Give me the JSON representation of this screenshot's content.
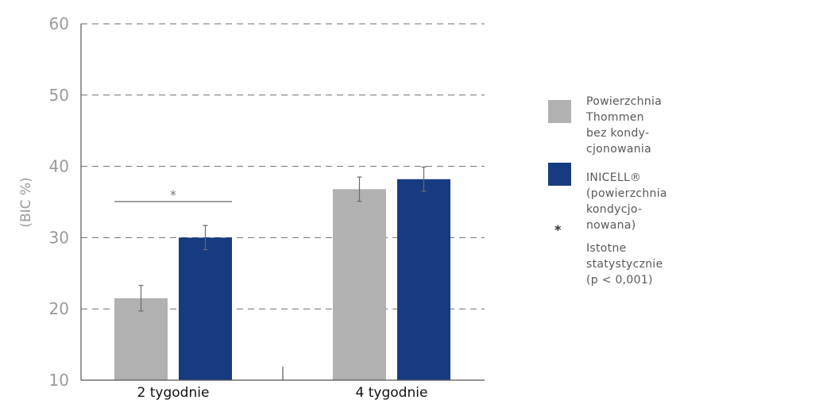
{
  "chart_data": {
    "type": "bar",
    "ylabel": "(BIC %)",
    "ylim": [
      10,
      60
    ],
    "yticks": [
      "10",
      "20",
      "30",
      "40",
      "50",
      "60"
    ],
    "grid": true,
    "categories": [
      "2 tygodnie",
      "4 tygodnie"
    ],
    "series": [
      {
        "name": "Powierzchnia Thommen bez kondy-\ncjonowania",
        "color": "#b1b1b1",
        "values": [
          21.5,
          36.8
        ],
        "error": [
          1.8,
          1.7
        ]
      },
      {
        "name": "INICELL® (powierzchnia kondycjo-\nnowana)",
        "color": "#173b80",
        "values": [
          30,
          38.2
        ],
        "error": [
          1.7,
          1.7
        ]
      }
    ],
    "annotations": [
      {
        "category": "2 tygodnie",
        "text": "*"
      }
    ],
    "legend_placement": "right"
  },
  "legend": {
    "note_symbol": "*",
    "note_text": "Istotne statystycznie (p < 0,001)"
  }
}
